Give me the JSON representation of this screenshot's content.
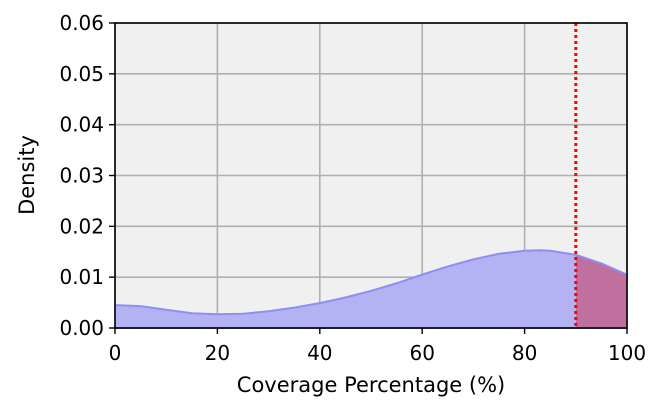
{
  "chart_data": {
    "type": "area",
    "xlabel": "Coverage Percentage (%)",
    "ylabel": "Density",
    "xlim": [
      0,
      100
    ],
    "ylim": [
      0,
      0.06
    ],
    "x_ticks": [
      0,
      20,
      40,
      60,
      80,
      100
    ],
    "x_tick_labels": [
      "0",
      "20",
      "40",
      "60",
      "80",
      "100"
    ],
    "y_ticks": [
      0,
      0.01,
      0.02,
      0.03,
      0.04,
      0.05,
      0.06
    ],
    "y_tick_labels": [
      "0.00",
      "0.01",
      "0.02",
      "0.03",
      "0.04",
      "0.05",
      "0.06"
    ],
    "grid": true,
    "series": [
      {
        "x": [
          0,
          5,
          10,
          15,
          20,
          25,
          30,
          35,
          40,
          45,
          50,
          55,
          60,
          65,
          70,
          75,
          80,
          83,
          85,
          90,
          95,
          100
        ],
        "y": [
          0.0045,
          0.0043,
          0.0036,
          0.0029,
          0.0027,
          0.0028,
          0.0033,
          0.004,
          0.0049,
          0.006,
          0.0073,
          0.0088,
          0.0105,
          0.0121,
          0.0135,
          0.0146,
          0.0152,
          0.0153,
          0.0152,
          0.0144,
          0.0127,
          0.0105
        ]
      }
    ],
    "threshold_x": 90,
    "colors": {
      "plot_background": "#f0f0f0",
      "grid": "#b0b0b0",
      "fill_below_threshold": "#b3b3f4",
      "fill_above_threshold": "#c0709f",
      "curve": "#8f8ff2",
      "threshold_line": "#ff0000"
    }
  }
}
